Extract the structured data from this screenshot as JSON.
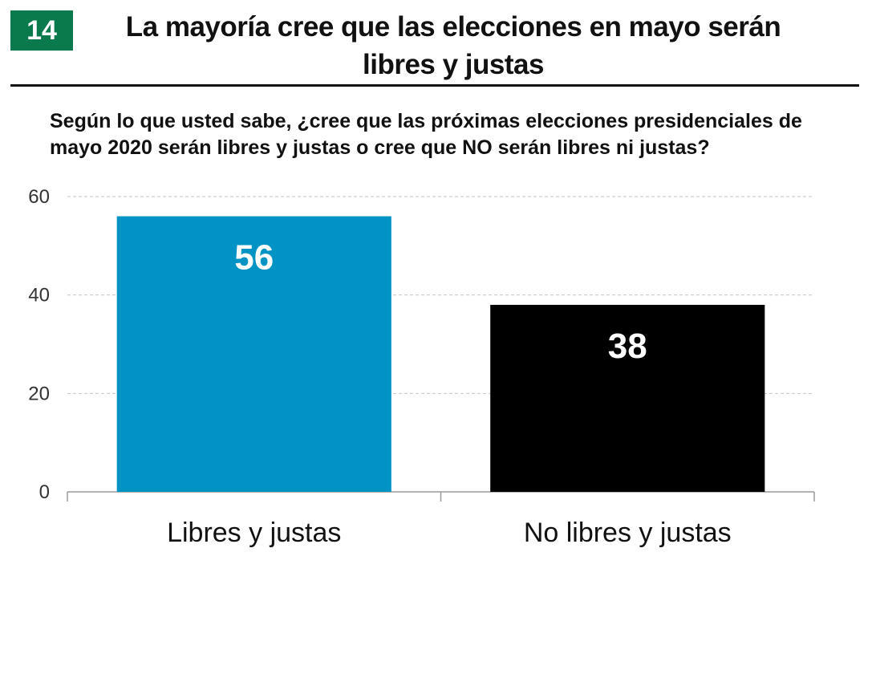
{
  "header": {
    "badge": "14",
    "title": "La mayoría cree que las elecciones en mayo serán libres y justas",
    "badge_color": "#0a7a4d"
  },
  "question": "Según lo que usted sabe, ¿cree que las próximas elecciones presidenciales de mayo 2020 serán libres y justas o cree que NO serán libres ni justas?",
  "chart_data": {
    "type": "bar",
    "categories": [
      "Libres y justas",
      "No libres y justas"
    ],
    "values": [
      56,
      38
    ],
    "data_labels": [
      "56",
      "38"
    ],
    "colors": [
      "#0093c4",
      "#000000"
    ],
    "ylim": [
      0,
      60
    ],
    "yticks": [
      0,
      20,
      40,
      60
    ],
    "ytick_labels": [
      "0",
      "20",
      "40",
      "60"
    ],
    "grid": true,
    "xlabel": "",
    "ylabel": ""
  }
}
